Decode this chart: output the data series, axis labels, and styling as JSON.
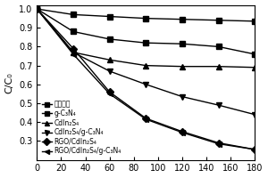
{
  "x": [
    0,
    30,
    60,
    90,
    120,
    150,
    180
  ],
  "series": {
    "无催化剂": [
      1.0,
      0.97,
      0.96,
      0.95,
      0.945,
      0.94,
      0.935
    ],
    "g-C₃N₄": [
      1.0,
      0.88,
      0.84,
      0.82,
      0.815,
      0.8,
      0.76
    ],
    "CdIn₂S₄": [
      1.0,
      0.77,
      0.73,
      0.7,
      0.695,
      0.695,
      0.69
    ],
    "CdIn₂S₄/g-C₃N₄": [
      1.0,
      0.77,
      0.67,
      0.6,
      0.535,
      0.49,
      0.44
    ],
    "RGO/CdIn₂S₄": [
      1.0,
      0.79,
      0.56,
      0.42,
      0.35,
      0.29,
      0.255
    ],
    "RGO/CdIn₂S₄/g-C₃N₄": [
      1.0,
      0.76,
      0.55,
      0.415,
      0.345,
      0.285,
      0.255
    ]
  },
  "markers": {
    "无催化剂": "s",
    "g-C₃N₄": "s",
    "CdIn₂S₄": "^",
    "CdIn₂S₄/g-C₃N₄": "v",
    "RGO/CdIn₂S₄": "D",
    "RGO/CdIn₂S₄/g-C₃N₄": "<"
  },
  "line_styles": {
    "无催化剂": "-",
    "g-C₃N₄": "-",
    "CdIn₂S₄": "-",
    "CdIn₂S₄/g-C₃N₄": "-",
    "RGO/CdIn₂S₄": "-",
    "RGO/CdIn₂S₄/g-C₃N₄": "-"
  },
  "ylabel": "C/C₀",
  "xlabel": "",
  "ylim": [
    0.2,
    1.02
  ],
  "xlim": [
    0,
    180
  ],
  "yticks": [
    0.3,
    0.4,
    0.5,
    0.6,
    0.7,
    0.8,
    0.9,
    1.0
  ],
  "xticks": [
    0,
    20,
    40,
    60,
    80,
    100,
    120,
    140,
    160,
    180
  ],
  "color": "#000000",
  "legend_fontsize": 5.5,
  "axis_fontsize": 7,
  "marker_size": 4,
  "line_width": 1.0
}
